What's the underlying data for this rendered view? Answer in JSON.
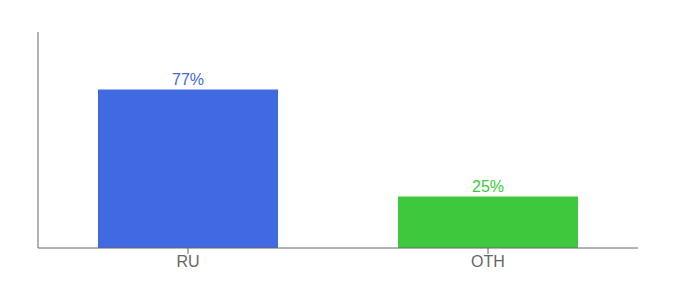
{
  "chart_data": {
    "type": "bar",
    "categories": [
      "RU",
      "OTH"
    ],
    "values": [
      77,
      25
    ],
    "value_labels": [
      "77%",
      "25%"
    ],
    "colors": [
      "#4169e1",
      "#3dc93d"
    ],
    "ylim": [
      0,
      105
    ],
    "grid": false,
    "data_labels": true,
    "tick_labels": "x"
  }
}
